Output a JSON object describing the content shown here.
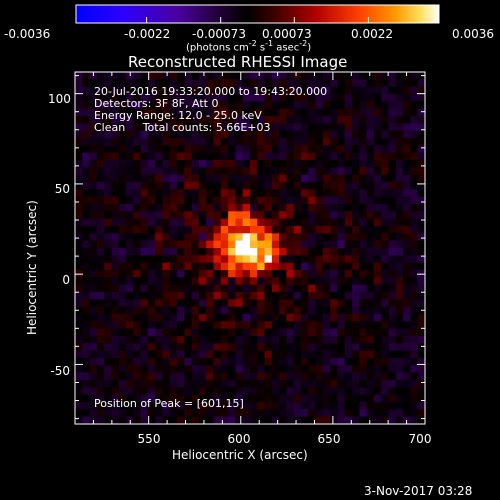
{
  "figure": {
    "title": "Reconstructed RHESSI Image",
    "info_lines": [
      "20-Jul-2016 19:33:20.000 to 19:43:20.000",
      "Detectors: 3F 8F, Att 0",
      "Energy Range: 12.0 - 25.0 keV",
      "Clean     Total counts: 5.66E+03"
    ],
    "peak_text": "Position of Peak = [601,15]",
    "footer_date": "3-Nov-2017 03:28"
  },
  "colorbar": {
    "tick_labels": [
      "-0.0036",
      "-0.0022",
      "-0.00073",
      "0.00073",
      "0.0022",
      "0.0036"
    ],
    "units_prefix": "(photons cm",
    "units_exp1": "-2",
    "units_mid": " s",
    "units_exp2": "-1",
    "units_mid2": " asec",
    "units_exp3": "-2",
    "units_suffix": ")",
    "range": [
      -0.0036,
      0.0036
    ]
  },
  "chart_data": {
    "type": "heatmap",
    "title": "Reconstructed RHESSI Image",
    "xlabel": "Heliocentric X (arcsec)",
    "ylabel": "Heliocentric Y (arcsec)",
    "xlim": [
      510,
      700
    ],
    "ylim": [
      -83,
      112
    ],
    "x_ticks": [
      550,
      600,
      650,
      700
    ],
    "y_ticks": [
      -50,
      0,
      50,
      100
    ],
    "peak_position": [
      601,
      15
    ],
    "value_range": [
      -0.0036,
      0.0036
    ],
    "colormap": [
      "#0000ff",
      "#4000c0",
      "#000000",
      "#a00000",
      "#ff6000",
      "#ffcc00",
      "#ffffff"
    ]
  }
}
